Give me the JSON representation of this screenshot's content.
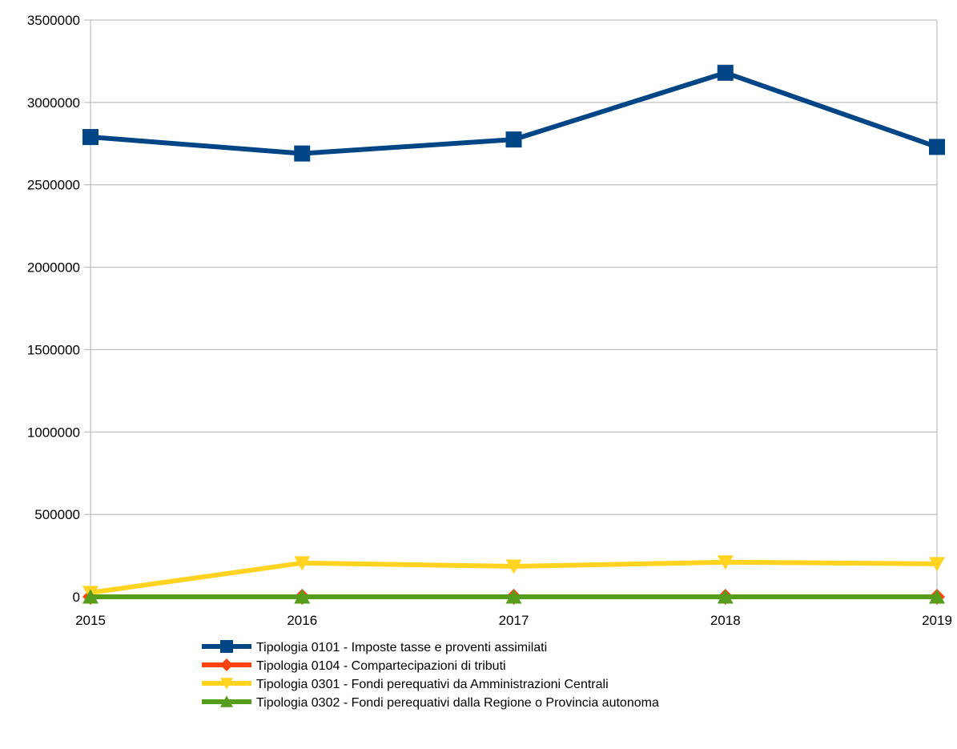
{
  "chart_data": {
    "type": "line",
    "title": "",
    "xlabel": "",
    "ylabel": "",
    "categories": [
      "2015",
      "2016",
      "2017",
      "2018",
      "2019"
    ],
    "ylim": [
      0,
      3500000
    ],
    "yticks": [
      "0",
      "500000",
      "1000000",
      "1500000",
      "2000000",
      "2500000",
      "3000000",
      "3500000"
    ],
    "grid": true,
    "legend_position": "bottom",
    "series": [
      {
        "name": "Tipologia 0101 - Imposte tasse e proventi assimilati",
        "values": [
          2790000,
          2690000,
          2775000,
          3180000,
          2730000
        ],
        "color": "#004586",
        "marker": "square"
      },
      {
        "name": "Tipologia 0104 - Compartecipazioni di tributi",
        "values": [
          0,
          0,
          0,
          0,
          0
        ],
        "color": "#ff420e",
        "marker": "diamond"
      },
      {
        "name": "Tipologia 0301 - Fondi perequativi da Amministrazioni Centrali",
        "values": [
          25000,
          205000,
          185000,
          210000,
          200000
        ],
        "color": "#ffd320",
        "marker": "triangle-down"
      },
      {
        "name": "Tipologia 0302 - Fondi perequativi dalla Regione o Provincia autonoma",
        "values": [
          0,
          0,
          0,
          0,
          0
        ],
        "color": "#579d1c",
        "marker": "triangle-up"
      }
    ]
  }
}
